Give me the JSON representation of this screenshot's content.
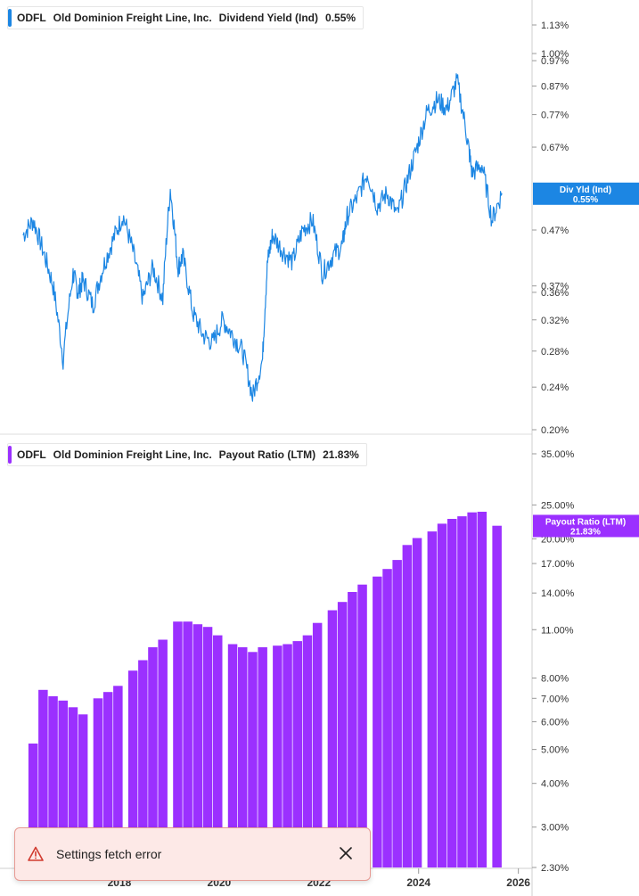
{
  "colors": {
    "div_yield": "#1c86e3",
    "payout": "#9b30ff",
    "axis_text": "#333333",
    "grid": "#dddddd",
    "toast_icon": "#d13a2f"
  },
  "legend_top": {
    "ticker": "ODFL",
    "company": "Old Dominion Freight Line, Inc.",
    "metric": "Dividend Yield (Ind)",
    "value": "0.55%"
  },
  "legend_bottom": {
    "ticker": "ODFL",
    "company": "Old Dominion Freight Line, Inc.",
    "metric": "Payout Ratio (LTM)",
    "value": "21.83%"
  },
  "toast": {
    "message": "Settings fetch error",
    "warning_icon": "warning-triangle-icon",
    "close_icon": "close-icon"
  },
  "chart_data": [
    {
      "type": "line",
      "series": [
        {
          "x": [
            2017.0,
            2017.2,
            2017.4,
            2017.6,
            2017.8,
            2018.0,
            2018.1,
            2018.2,
            2018.4,
            2018.6,
            2018.8,
            2019.0,
            2019.2,
            2019.4,
            2019.6,
            2019.8,
            2019.95,
            2020.1,
            2020.2,
            2020.4,
            2020.6,
            2020.8,
            2021.0,
            2021.2,
            2021.4,
            2021.6,
            2021.8,
            2021.9,
            2022.0,
            2022.2,
            2022.4,
            2022.6,
            2022.8,
            2023.0,
            2023.2,
            2023.4,
            2023.5,
            2023.7,
            2023.9,
            2024.1,
            2024.3,
            2024.5,
            2024.7,
            2024.9,
            2025.1,
            2025.3,
            2025.5,
            2025.7,
            2025.9,
            2026.0,
            2026.2,
            2026.4,
            2026.6
          ],
          "y": [
            0.46,
            0.49,
            0.43,
            0.37,
            0.27,
            0.39,
            0.36,
            0.38,
            0.34,
            0.4,
            0.45,
            0.5,
            0.43,
            0.35,
            0.4,
            0.35,
            0.56,
            0.4,
            0.42,
            0.33,
            0.3,
            0.29,
            0.32,
            0.3,
            0.28,
            0.23,
            0.27,
            0.41,
            0.46,
            0.43,
            0.41,
            0.47,
            0.49,
            0.39,
            0.42,
            0.44,
            0.5,
            0.54,
            0.6,
            0.52,
            0.55,
            0.5,
            0.58,
            0.67,
            0.78,
            0.82,
            0.79,
            0.89,
            0.7,
            0.6,
            0.62,
            0.49,
            0.55
          ],
          "values_note": ""
        }
      ],
      "ylim": [
        0.2,
        1.2
      ],
      "y_scale": "log",
      "y_ticks": [
        "1.13%",
        "1.00%",
        "0.97%",
        "0.87%",
        "0.77%",
        "0.67%",
        "0.47%",
        "0.37%",
        "0.36%",
        "0.32%",
        "0.28%",
        "0.24%",
        "0.20%"
      ],
      "y_tick_values": [
        1.13,
        1.0,
        0.97,
        0.87,
        0.77,
        0.67,
        0.47,
        0.37,
        0.36,
        0.32,
        0.28,
        0.24,
        0.2
      ],
      "current_label": [
        "Div Yld (Ind)",
        "0.55%"
      ],
      "current_value": 0.55
    },
    {
      "type": "bar",
      "x": [
        2017.2,
        2017.4,
        2017.6,
        2017.8,
        2018.0,
        2018.2,
        2018.5,
        2018.7,
        2018.9,
        2019.2,
        2019.4,
        2019.6,
        2019.8,
        2020.1,
        2020.3,
        2020.5,
        2020.7,
        2020.9,
        2021.2,
        2021.4,
        2021.6,
        2021.8,
        2022.1,
        2022.3,
        2022.5,
        2022.7,
        2022.9,
        2023.2,
        2023.4,
        2023.6,
        2023.8,
        2024.1,
        2024.3,
        2024.5,
        2024.7,
        2024.9,
        2025.2,
        2025.4,
        2025.6,
        2025.8,
        2026.0,
        2026.2,
        2026.5
      ],
      "values": [
        5.2,
        7.4,
        7.1,
        6.9,
        6.6,
        6.3,
        7.0,
        7.3,
        7.6,
        8.4,
        9.0,
        9.8,
        10.3,
        11.6,
        11.6,
        11.4,
        11.2,
        10.6,
        10.0,
        9.8,
        9.5,
        9.8,
        9.9,
        10.0,
        10.2,
        10.6,
        11.5,
        12.5,
        13.2,
        14.1,
        14.8,
        15.6,
        16.4,
        17.4,
        19.2,
        20.1,
        21.0,
        22.1,
        22.8,
        23.2,
        23.8,
        23.9,
        21.8
      ],
      "ylim": [
        2.3,
        40.0
      ],
      "y_scale": "log",
      "y_ticks": [
        "35.00%",
        "25.00%",
        "20.00%",
        "17.00%",
        "14.00%",
        "11.00%",
        "8.00%",
        "7.00%",
        "6.00%",
        "5.00%",
        "4.00%",
        "3.00%",
        "2.30%"
      ],
      "y_tick_values": [
        35.0,
        25.0,
        20.0,
        17.0,
        14.0,
        11.0,
        8.0,
        7.0,
        6.0,
        5.0,
        4.0,
        3.0,
        2.3
      ],
      "x_ticks": [
        "2018",
        "2020",
        "2022",
        "2024",
        "2026"
      ],
      "x_tick_values": [
        2018,
        2020,
        2022,
        2024,
        2026
      ],
      "current_label": [
        "Payout Ratio (LTM)",
        "21.83%"
      ],
      "current_value": 21.83
    }
  ]
}
